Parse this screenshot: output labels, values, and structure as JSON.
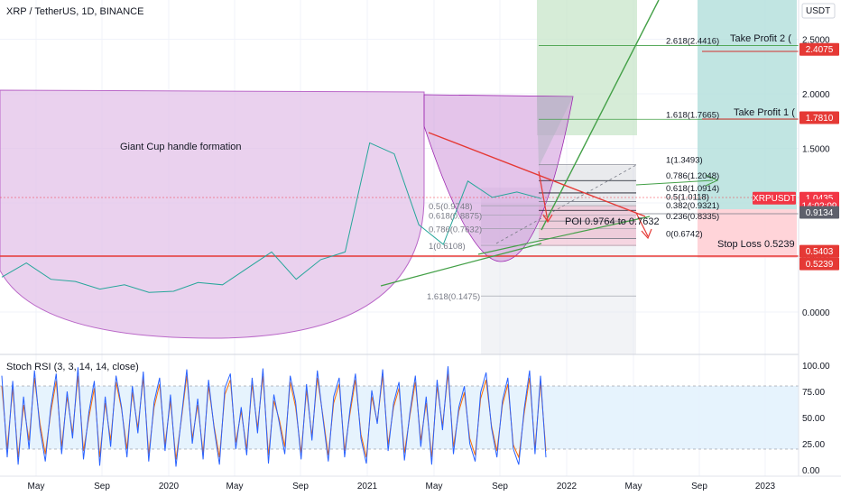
{
  "title": "XRP / TetherUS, 1D, BINANCE",
  "currency_badge": "USDT",
  "annotations": {
    "cup": "Giant Cup handle formation",
    "poi": "POI 0.9764 to 0.7632",
    "tp1": "Take Profit 1 (",
    "tp2": "Take Profit 2 (",
    "sl": "Stop Loss 0.5239"
  },
  "price_tags": [
    {
      "name": "tp2-tag",
      "label": "2.4075",
      "value": 2.4075,
      "color": "#e53935"
    },
    {
      "name": "tp1-tag",
      "label": "1.7810",
      "value": 1.781,
      "color": "#e53935"
    },
    {
      "name": "symbol-tag",
      "label": "XRPUSDT",
      "value": 1.0435,
      "color": "#f23645"
    },
    {
      "name": "last-price-tag",
      "label": "1.0435",
      "value": 1.0435,
      "color": "#f23645"
    },
    {
      "name": "countdown-tag",
      "label": "14:02:09",
      "value": 0.975,
      "color": "#f23645"
    },
    {
      "name": "level-tag",
      "label": "0.9134",
      "value": 0.9134,
      "color": "#5d606b"
    },
    {
      "name": "support-tag",
      "label": "0.5403",
      "value": 0.5403,
      "color": "#e53935"
    },
    {
      "name": "stop-tag",
      "label": "0.5239",
      "value": 0.5239,
      "color": "#e53935"
    }
  ],
  "fib_top": [
    {
      "label": "2.618(2.4416)",
      "value": 2.4416,
      "color": "#43a047"
    },
    {
      "label": "1.618(1.7665)",
      "value": 1.7665,
      "color": "#43a047"
    },
    {
      "label": "1(1.3493)",
      "value": 1.3493,
      "color": "#787b86"
    },
    {
      "label": "0.786(1.2048)",
      "value": 1.2048,
      "color": "#131722"
    },
    {
      "label": "0.618(1.0914)",
      "value": 1.0914,
      "color": "#131722"
    },
    {
      "label": "0.5(1.0118)",
      "value": 1.0118,
      "color": "#787b86"
    },
    {
      "label": "0.382(0.9321)",
      "value": 0.9321,
      "color": "#131722"
    },
    {
      "label": "0.236(0.8335)",
      "value": 0.8335,
      "color": "#787b86"
    },
    {
      "label": "0(0.6742)",
      "value": 0.6742,
      "color": "#787b86"
    }
  ],
  "fib_mid": [
    {
      "label": "0.5(0.9748)",
      "value": 0.9748
    },
    {
      "label": "0.618(0.8875)",
      "value": 0.8875
    },
    {
      "label": "0.786(0.7632)",
      "value": 0.7632
    },
    {
      "label": "1(0.6108)",
      "value": 0.6108
    },
    {
      "label": "1.618(0.1475)",
      "value": 0.1475
    }
  ],
  "chart_data": [
    {
      "type": "line",
      "name": "price",
      "y_ticks": [
        "2.5000",
        "2.0000",
        "1.5000",
        "1.0000",
        "0.5000",
        "0.0000"
      ],
      "ylim": [
        -0.3,
        2.95
      ],
      "x_ticks": [
        "May",
        "Sep",
        "2020",
        "May",
        "Sep",
        "2021",
        "May",
        "Sep",
        "2022",
        "May",
        "Sep",
        "2023"
      ],
      "x": [
        "2019-04",
        "2019-06",
        "2019-08",
        "2019-10",
        "2019-12",
        "2020-02",
        "2020-04",
        "2020-06",
        "2020-08",
        "2020-10",
        "2020-11",
        "2020-12",
        "2021-01",
        "2021-02",
        "2021-03",
        "2021-04",
        "2021-05",
        "2021-06",
        "2021-07",
        "2021-08",
        "2021-09",
        "2021-10",
        "2021-11"
      ],
      "y": [
        0.32,
        0.45,
        0.3,
        0.28,
        0.21,
        0.25,
        0.18,
        0.19,
        0.27,
        0.25,
        0.4,
        0.55,
        0.3,
        0.48,
        0.55,
        1.55,
        1.45,
        0.8,
        0.62,
        1.2,
        1.05,
        1.1,
        1.04
      ]
    },
    {
      "type": "line",
      "name": "Stoch RSI (3, 3, 14, 14, close)",
      "y_ticks": [
        "100.00",
        "75.00",
        "50.00",
        "25.00",
        "0.00"
      ],
      "ylim": [
        0,
        100
      ],
      "bands": [
        20,
        80
      ],
      "series": [
        {
          "name": "K",
          "color": "#2962ff",
          "values": [
            90,
            12,
            85,
            5,
            70,
            20,
            95,
            40,
            8,
            60,
            92,
            15,
            75,
            30,
            98,
            10,
            55,
            85,
            4,
            70,
            22,
            90,
            60,
            12,
            80,
            35,
            94,
            8,
            65,
            88,
            18,
            72,
            3,
            50,
            96,
            25,
            68,
            10,
            86,
            40,
            5,
            78,
            92,
            20,
            60,
            14,
            88,
            35,
            97,
            6,
            72,
            45,
            15,
            90,
            65,
            10,
            82,
            28,
            95,
            50,
            8,
            70,
            88,
            12,
            58,
            92,
            30,
            6,
            76,
            44,
            96,
            18,
            64,
            84,
            9,
            55,
            90,
            22,
            70,
            5,
            86,
            38,
            99,
            15,
            60,
            80,
            25,
            8,
            74,
            93,
            40,
            12,
            66,
            88,
            20,
            5,
            58,
            95,
            15,
            90,
            12
          ]
        },
        {
          "name": "D",
          "color": "#ff6d00",
          "values": [
            80,
            20,
            78,
            12,
            62,
            28,
            88,
            45,
            15,
            55,
            85,
            22,
            70,
            35,
            90,
            18,
            50,
            78,
            12,
            64,
            28,
            84,
            58,
            20,
            74,
            40,
            88,
            15,
            60,
            82,
            24,
            66,
            10,
            48,
            90,
            30,
            62,
            16,
            80,
            42,
            12,
            72,
            86,
            26,
            56,
            20,
            82,
            40,
            90,
            14,
            66,
            48,
            22,
            84,
            60,
            16,
            76,
            32,
            88,
            52,
            14,
            64,
            82,
            18,
            54,
            86,
            34,
            12,
            70,
            46,
            90,
            24,
            60,
            78,
            16,
            52,
            84,
            28,
            64,
            12,
            80,
            42,
            92,
            22,
            56,
            74,
            30,
            14,
            68,
            86,
            42,
            18,
            62,
            82,
            24,
            12,
            54,
            88,
            20,
            84,
            18
          ]
        }
      ]
    }
  ]
}
